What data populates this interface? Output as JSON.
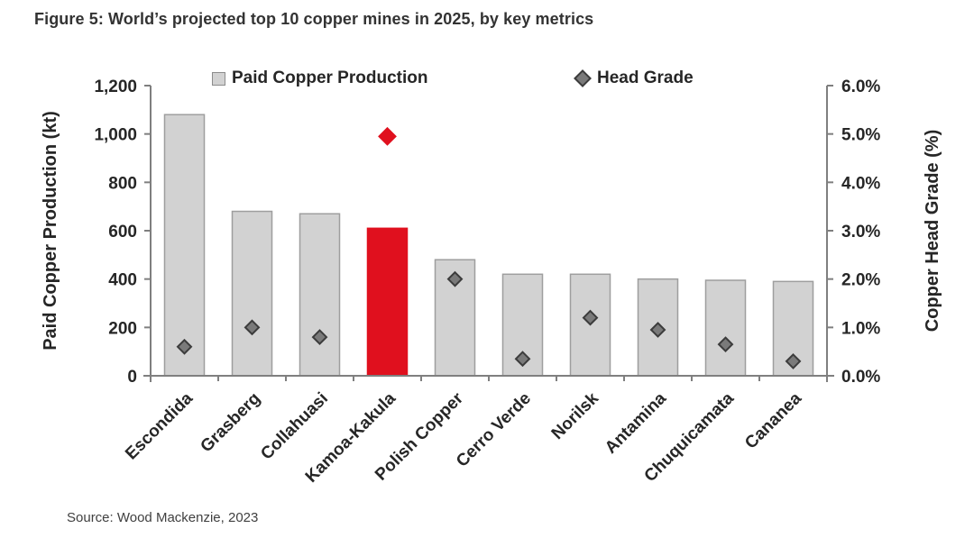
{
  "figure": {
    "title": "Figure 5: World’s projected top 10 copper mines in 2025, by key metrics",
    "source": "Source: Wood Mackenzie, 2023"
  },
  "legend": {
    "bar_label": "Paid Copper Production",
    "marker_label": "Head Grade",
    "position": "top"
  },
  "colors": {
    "bar_fill": "#d2d2d2",
    "bar_stroke": "#9e9e9e",
    "highlight_red": "#e0101e",
    "marker_fill": "#7a7a7a",
    "marker_stroke": "#3c3c3c",
    "axis_line": "#7f7f7f",
    "text": "#262626"
  },
  "chart_data": {
    "type": "bar",
    "subtype": "bar-with-scatter-overlay-dual-axis",
    "title": "Figure 5: World’s projected top 10 copper mines in 2025, by key metrics",
    "categories": [
      "Escondida",
      "Grasberg",
      "Collahuasi",
      "Kamoa-Kakula",
      "Polish Copper",
      "Cerro Verde",
      "Norilsk",
      "Antamina",
      "Chuquicamata",
      "Cananea"
    ],
    "series": [
      {
        "name": "Paid Copper Production",
        "type": "bar",
        "axis": "left",
        "unit": "kt",
        "values": [
          1080,
          680,
          670,
          610,
          480,
          420,
          420,
          400,
          395,
          390
        ]
      },
      {
        "name": "Head Grade",
        "type": "scatter-diamond",
        "axis": "right",
        "unit": "%",
        "values": [
          0.6,
          1.0,
          0.8,
          4.95,
          2.0,
          0.35,
          1.2,
          0.95,
          0.65,
          0.3
        ]
      }
    ],
    "highlight_category": "Kamoa-Kakula",
    "highlight_index": 3,
    "left_axis": {
      "label": "Paid Copper Production (kt)",
      "min": 0,
      "max": 1200,
      "step": 200,
      "tick_labels": [
        "0",
        "200",
        "400",
        "600",
        "800",
        "1,000",
        "1,200"
      ]
    },
    "right_axis": {
      "label": "Copper Head Grade (%)",
      "min": 0,
      "max": 6,
      "step": 1,
      "tick_labels": [
        "0.0%",
        "1.0%",
        "2.0%",
        "3.0%",
        "4.0%",
        "5.0%",
        "6.0%"
      ]
    },
    "grid": false,
    "legend_position": "top-inside"
  }
}
